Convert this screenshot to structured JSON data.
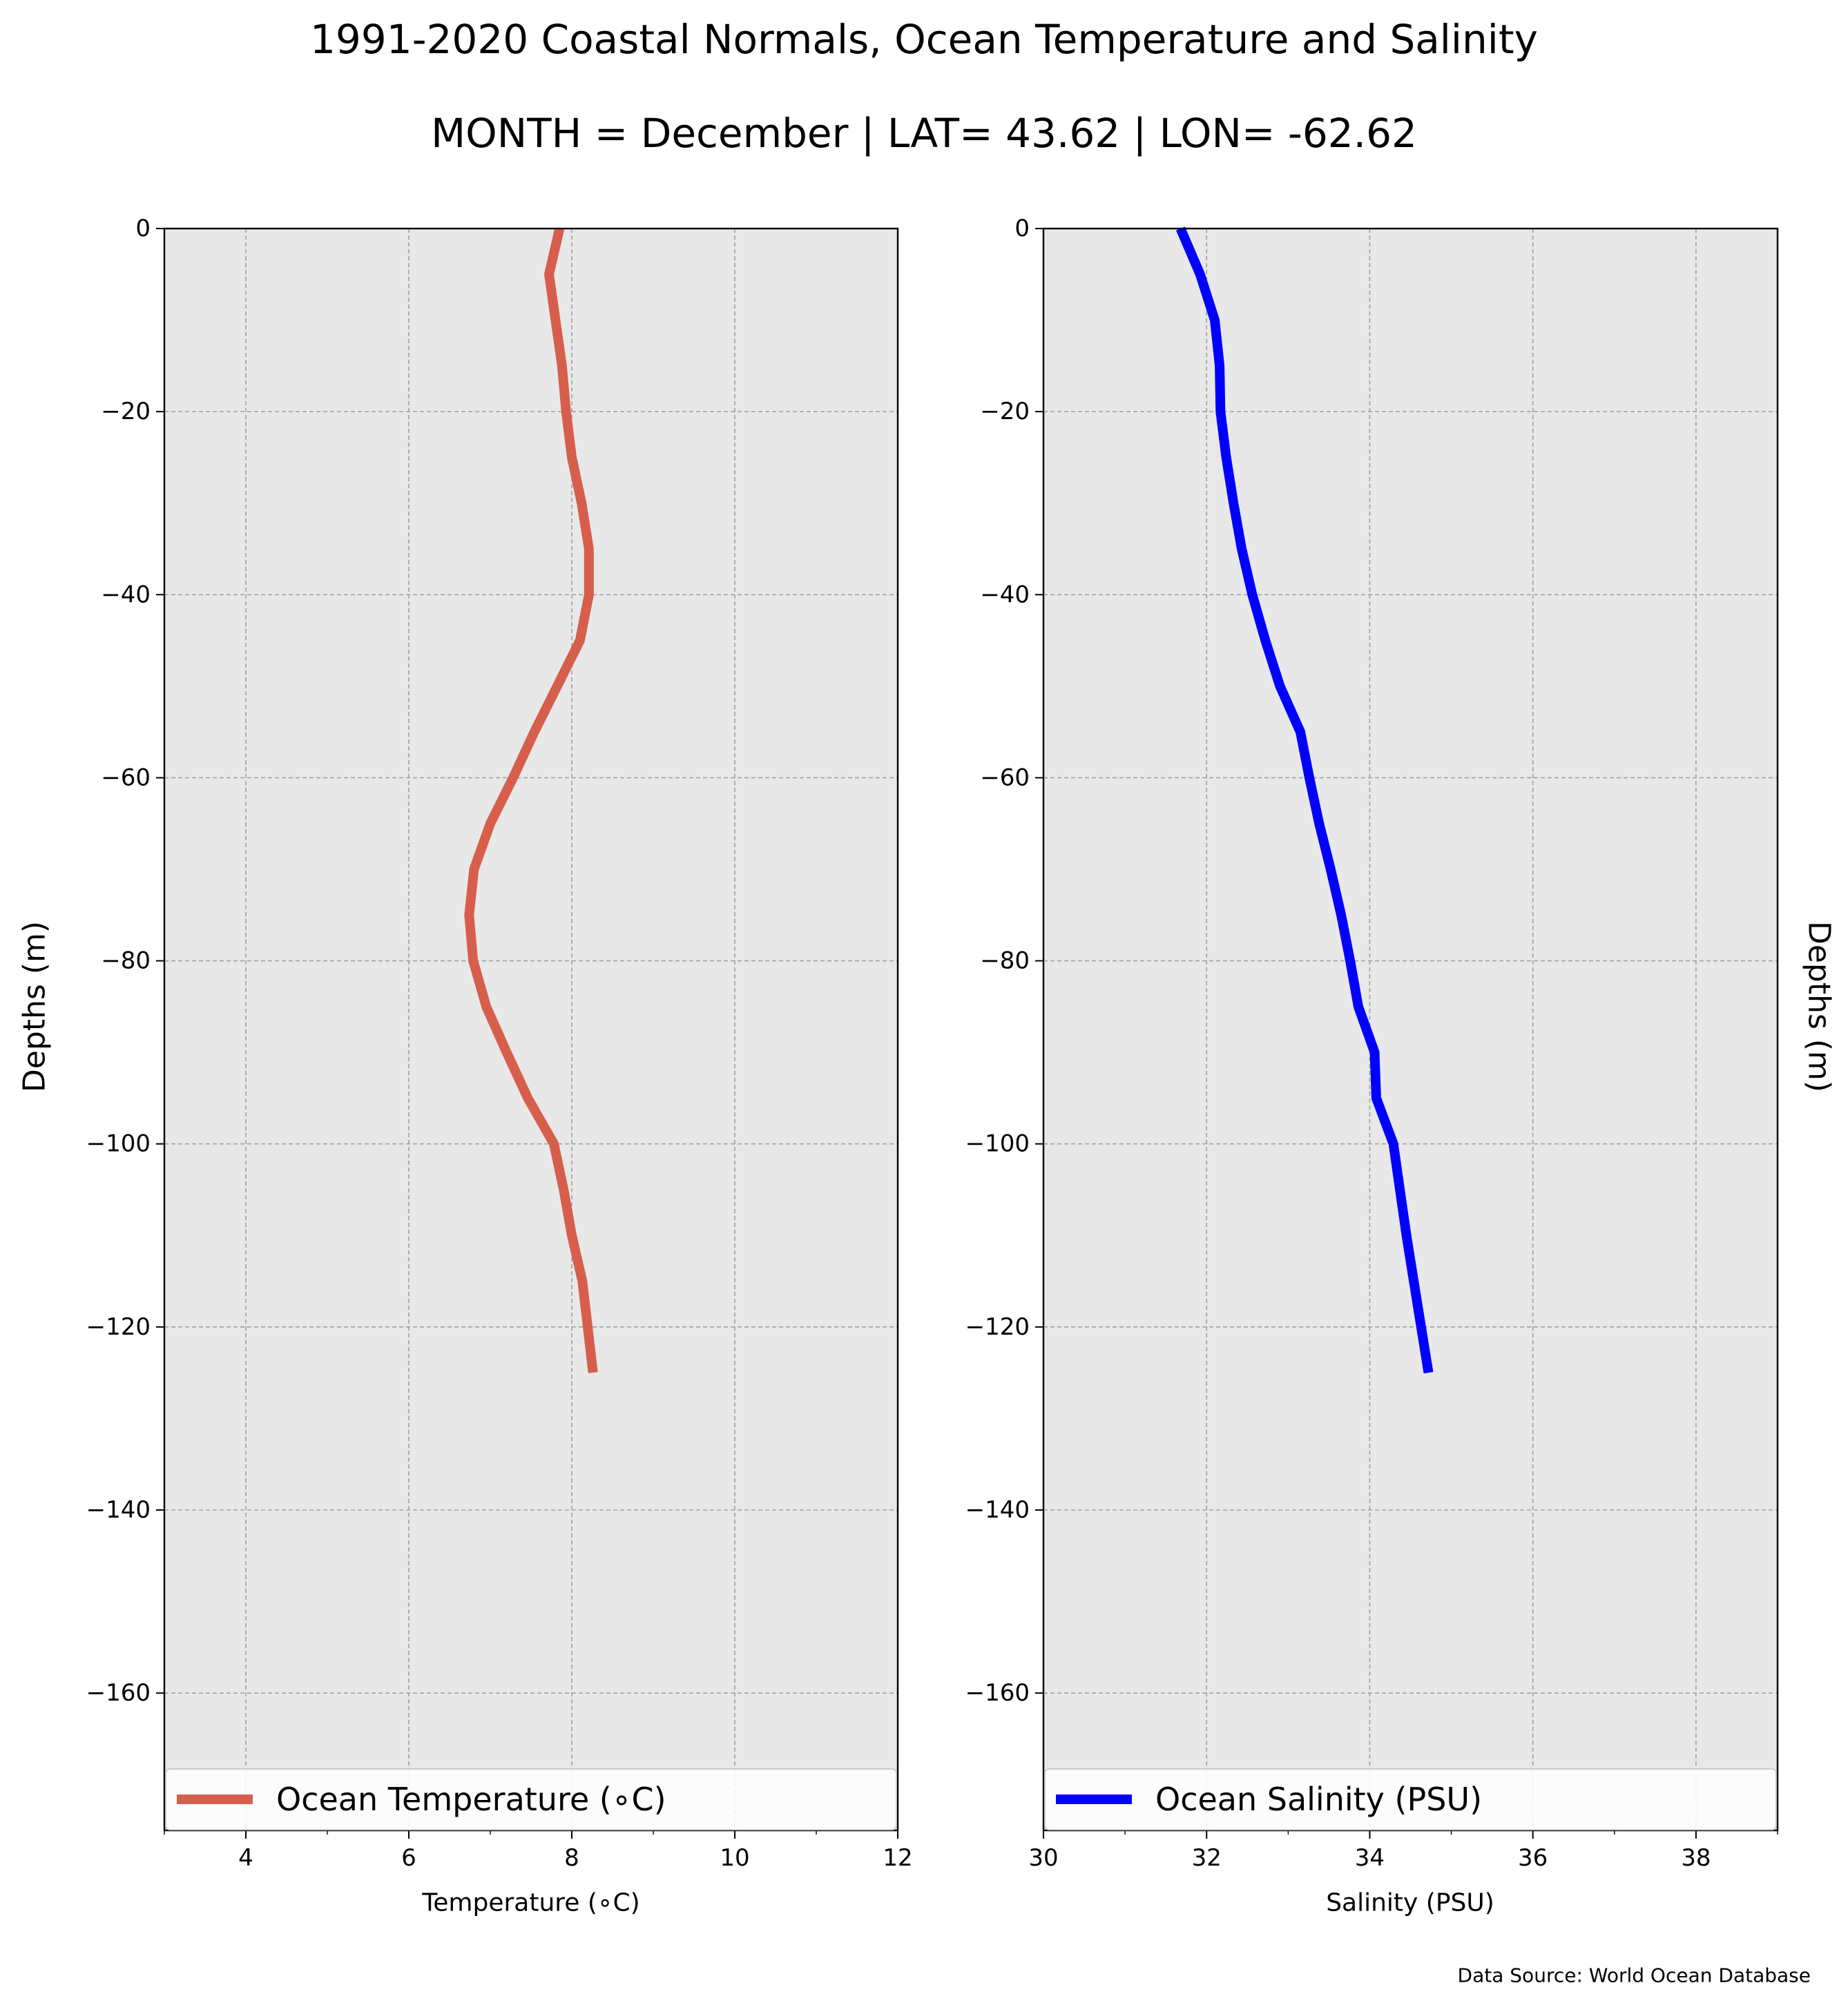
{
  "figure": {
    "title_line1": "1991-2020 Coastal Normals, Ocean Temperature and Salinity",
    "title_line2": "MONTH = December | LAT= 43.62 | LON= -62.62",
    "source_note": "Data Source: World Ocean Database",
    "background_color": "#e8e8e8",
    "grid_color": "#a0a0a0"
  },
  "chart_data": [
    {
      "type": "line",
      "id": "temperature",
      "xlabel": "Temperature (∘C)",
      "ylabel": "Depths (m)",
      "xlim": [
        3,
        12
      ],
      "ylim": [
        -175,
        0
      ],
      "xticks": [
        4,
        6,
        8,
        10,
        12
      ],
      "xtick_labels": [
        "4",
        "6",
        "8",
        "10",
        "12"
      ],
      "yticks": [
        0,
        -20,
        -40,
        -60,
        -80,
        -100,
        -120,
        -140,
        -160
      ],
      "ytick_labels": [
        "0",
        "−20",
        "−40",
        "−60",
        "−80",
        "−100",
        "−120",
        "−140",
        "−160"
      ],
      "grid": true,
      "legend_position": "lower-center",
      "series": [
        {
          "name": "Ocean Temperature (∘C)",
          "color": "#d65f4c",
          "x": [
            7.85,
            7.72,
            7.8,
            7.88,
            7.93,
            8.0,
            8.12,
            8.21,
            8.21,
            8.1,
            7.82,
            7.54,
            7.28,
            7.0,
            6.8,
            6.74,
            6.79,
            6.95,
            7.2,
            7.46,
            7.78,
            7.9,
            8.0,
            8.13,
            8.26
          ],
          "y": [
            0,
            -5,
            -10,
            -15,
            -20,
            -25,
            -30,
            -35,
            -40,
            -45,
            -50,
            -55,
            -60,
            -65,
            -70,
            -75,
            -80,
            -85,
            -90,
            -95,
            -100,
            -105,
            -110,
            -115,
            -125
          ]
        }
      ]
    },
    {
      "type": "line",
      "id": "salinity",
      "xlabel": "Salinity (PSU)",
      "ylabel": "Depths (m)",
      "xlim": [
        30,
        39
      ],
      "ylim": [
        -175,
        0
      ],
      "xticks": [
        30,
        32,
        34,
        36,
        38
      ],
      "xtick_labels": [
        "30",
        "32",
        "34",
        "36",
        "38"
      ],
      "yticks": [
        0,
        -20,
        -40,
        -60,
        -80,
        -100,
        -120,
        -140,
        -160
      ],
      "ytick_labels": [
        "0",
        "−20",
        "−40",
        "−60",
        "−80",
        "−100",
        "−120",
        "−140",
        "−160"
      ],
      "grid": true,
      "legend_position": "lower-center",
      "series": [
        {
          "name": "Ocean Salinity (PSU)",
          "color": "#0000ff",
          "x": [
            31.68,
            31.92,
            32.1,
            32.16,
            32.17,
            32.24,
            32.33,
            32.43,
            32.56,
            32.72,
            32.9,
            33.15,
            33.26,
            33.38,
            33.52,
            33.65,
            33.76,
            33.86,
            34.06,
            34.08,
            34.29,
            34.37,
            34.45,
            34.54,
            34.72
          ],
          "y": [
            0,
            -5,
            -10,
            -15,
            -20,
            -25,
            -30,
            -35,
            -40,
            -45,
            -50,
            -55,
            -60,
            -65,
            -70,
            -75,
            -80,
            -85,
            -90,
            -95,
            -100,
            -105,
            -110,
            -115,
            -125
          ]
        }
      ]
    }
  ]
}
